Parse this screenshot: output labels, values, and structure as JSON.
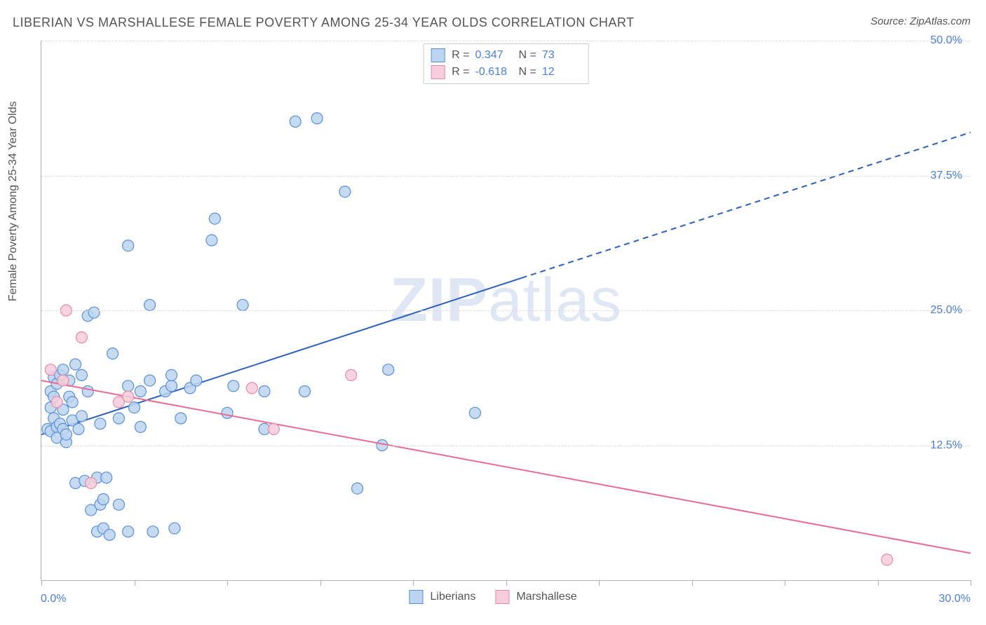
{
  "title": "LIBERIAN VS MARSHALLESE FEMALE POVERTY AMONG 25-34 YEAR OLDS CORRELATION CHART",
  "source_label": "Source:",
  "source_name": "ZipAtlas.com",
  "watermark": "ZIPatlas",
  "chart": {
    "type": "scatter-with-regression",
    "ylabel": "Female Poverty Among 25-34 Year Olds",
    "xlim": [
      0,
      30
    ],
    "ylim": [
      0,
      50
    ],
    "x_ticks": [
      0,
      3,
      6,
      9,
      12,
      15,
      18,
      21,
      24,
      27,
      30
    ],
    "x_tick_labels": {
      "first": "0.0%",
      "last": "30.0%"
    },
    "y_ticks": [
      12.5,
      25.0,
      37.5,
      50.0
    ],
    "y_tick_labels": [
      "12.5%",
      "25.0%",
      "37.5%",
      "50.0%"
    ],
    "grid_color": "#dcdcdc",
    "axis_color": "#b0b0b0",
    "tick_label_color": "#4a7fd6",
    "background_color": "#ffffff",
    "marker_radius": 8,
    "marker_stroke_width": 1.2,
    "line_width": 2,
    "series": [
      {
        "name": "Liberians",
        "fill": "#bcd5f0",
        "stroke": "#5a8fd6",
        "line_color": "#2c5fbf",
        "R": "0.347",
        "N": "73",
        "regression": {
          "x1": 0,
          "y1": 13.5,
          "x2": 15.5,
          "y2": 28.0,
          "extend_to_x": 30,
          "extend_y": 41.5
        },
        "points": [
          [
            0.2,
            14.0
          ],
          [
            0.3,
            13.8
          ],
          [
            0.3,
            16.0
          ],
          [
            0.3,
            17.5
          ],
          [
            0.4,
            15.0
          ],
          [
            0.4,
            18.8
          ],
          [
            0.4,
            17.0
          ],
          [
            0.5,
            14.2
          ],
          [
            0.5,
            13.2
          ],
          [
            0.5,
            18.2
          ],
          [
            0.6,
            14.5
          ],
          [
            0.6,
            19.0
          ],
          [
            0.7,
            14.0
          ],
          [
            0.7,
            15.8
          ],
          [
            0.7,
            19.5
          ],
          [
            0.8,
            12.8
          ],
          [
            0.8,
            13.5
          ],
          [
            0.9,
            17.0
          ],
          [
            0.9,
            18.5
          ],
          [
            1.0,
            14.8
          ],
          [
            1.0,
            16.5
          ],
          [
            1.1,
            9.0
          ],
          [
            1.1,
            20.0
          ],
          [
            1.2,
            14.0
          ],
          [
            1.3,
            15.2
          ],
          [
            1.3,
            19.0
          ],
          [
            1.4,
            9.2
          ],
          [
            1.5,
            17.5
          ],
          [
            1.5,
            24.5
          ],
          [
            1.6,
            6.5
          ],
          [
            1.7,
            24.8
          ],
          [
            1.8,
            4.5
          ],
          [
            1.8,
            9.5
          ],
          [
            1.9,
            14.5
          ],
          [
            1.9,
            7.0
          ],
          [
            2.0,
            7.5
          ],
          [
            2.0,
            4.8
          ],
          [
            2.1,
            9.5
          ],
          [
            2.2,
            4.2
          ],
          [
            2.3,
            21.0
          ],
          [
            2.5,
            15.0
          ],
          [
            2.5,
            7.0
          ],
          [
            2.8,
            4.5
          ],
          [
            2.8,
            18.0
          ],
          [
            2.8,
            31.0
          ],
          [
            3.0,
            16.0
          ],
          [
            3.2,
            14.2
          ],
          [
            3.2,
            17.5
          ],
          [
            3.5,
            18.5
          ],
          [
            3.5,
            25.5
          ],
          [
            3.6,
            4.5
          ],
          [
            4.0,
            17.5
          ],
          [
            4.2,
            18.0
          ],
          [
            4.2,
            19.0
          ],
          [
            4.3,
            4.8
          ],
          [
            4.5,
            15.0
          ],
          [
            4.8,
            17.8
          ],
          [
            5.0,
            18.5
          ],
          [
            5.5,
            31.5
          ],
          [
            5.6,
            33.5
          ],
          [
            6.0,
            15.5
          ],
          [
            6.2,
            18.0
          ],
          [
            6.5,
            25.5
          ],
          [
            7.2,
            17.5
          ],
          [
            7.2,
            14.0
          ],
          [
            8.2,
            42.5
          ],
          [
            8.5,
            17.5
          ],
          [
            8.9,
            42.8
          ],
          [
            9.8,
            36.0
          ],
          [
            10.2,
            8.5
          ],
          [
            11.0,
            12.5
          ],
          [
            11.2,
            19.5
          ],
          [
            14.0,
            15.5
          ]
        ]
      },
      {
        "name": "Marshallese",
        "fill": "#f6cdd9",
        "stroke": "#e58ba8",
        "line_color": "#e86b94",
        "R": "-0.618",
        "N": "12",
        "regression": {
          "x1": 0,
          "y1": 18.5,
          "x2": 30,
          "y2": 2.5
        },
        "points": [
          [
            0.3,
            19.5
          ],
          [
            0.5,
            16.5
          ],
          [
            0.7,
            18.5
          ],
          [
            0.8,
            25.0
          ],
          [
            1.3,
            22.5
          ],
          [
            1.6,
            9.0
          ],
          [
            2.5,
            16.5
          ],
          [
            2.8,
            17.0
          ],
          [
            6.8,
            17.8
          ],
          [
            7.5,
            14.0
          ],
          [
            10.0,
            19.0
          ],
          [
            27.3,
            1.9
          ]
        ]
      }
    ],
    "legend_top": {
      "rows": [
        {
          "swatch_fill": "#bcd5f0",
          "swatch_stroke": "#5a8fd6",
          "r_label": "R =",
          "r_value": "0.347",
          "n_label": "N =",
          "n_value": "73"
        },
        {
          "swatch_fill": "#f6cdd9",
          "swatch_stroke": "#e58ba8",
          "r_label": "R =",
          "r_value": "-0.618",
          "n_label": "N =",
          "n_value": "12"
        }
      ]
    },
    "legend_bottom": [
      {
        "swatch_fill": "#bcd5f0",
        "swatch_stroke": "#5a8fd6",
        "label": "Liberians"
      },
      {
        "swatch_fill": "#f6cdd9",
        "swatch_stroke": "#e58ba8",
        "label": "Marshallese"
      }
    ]
  }
}
